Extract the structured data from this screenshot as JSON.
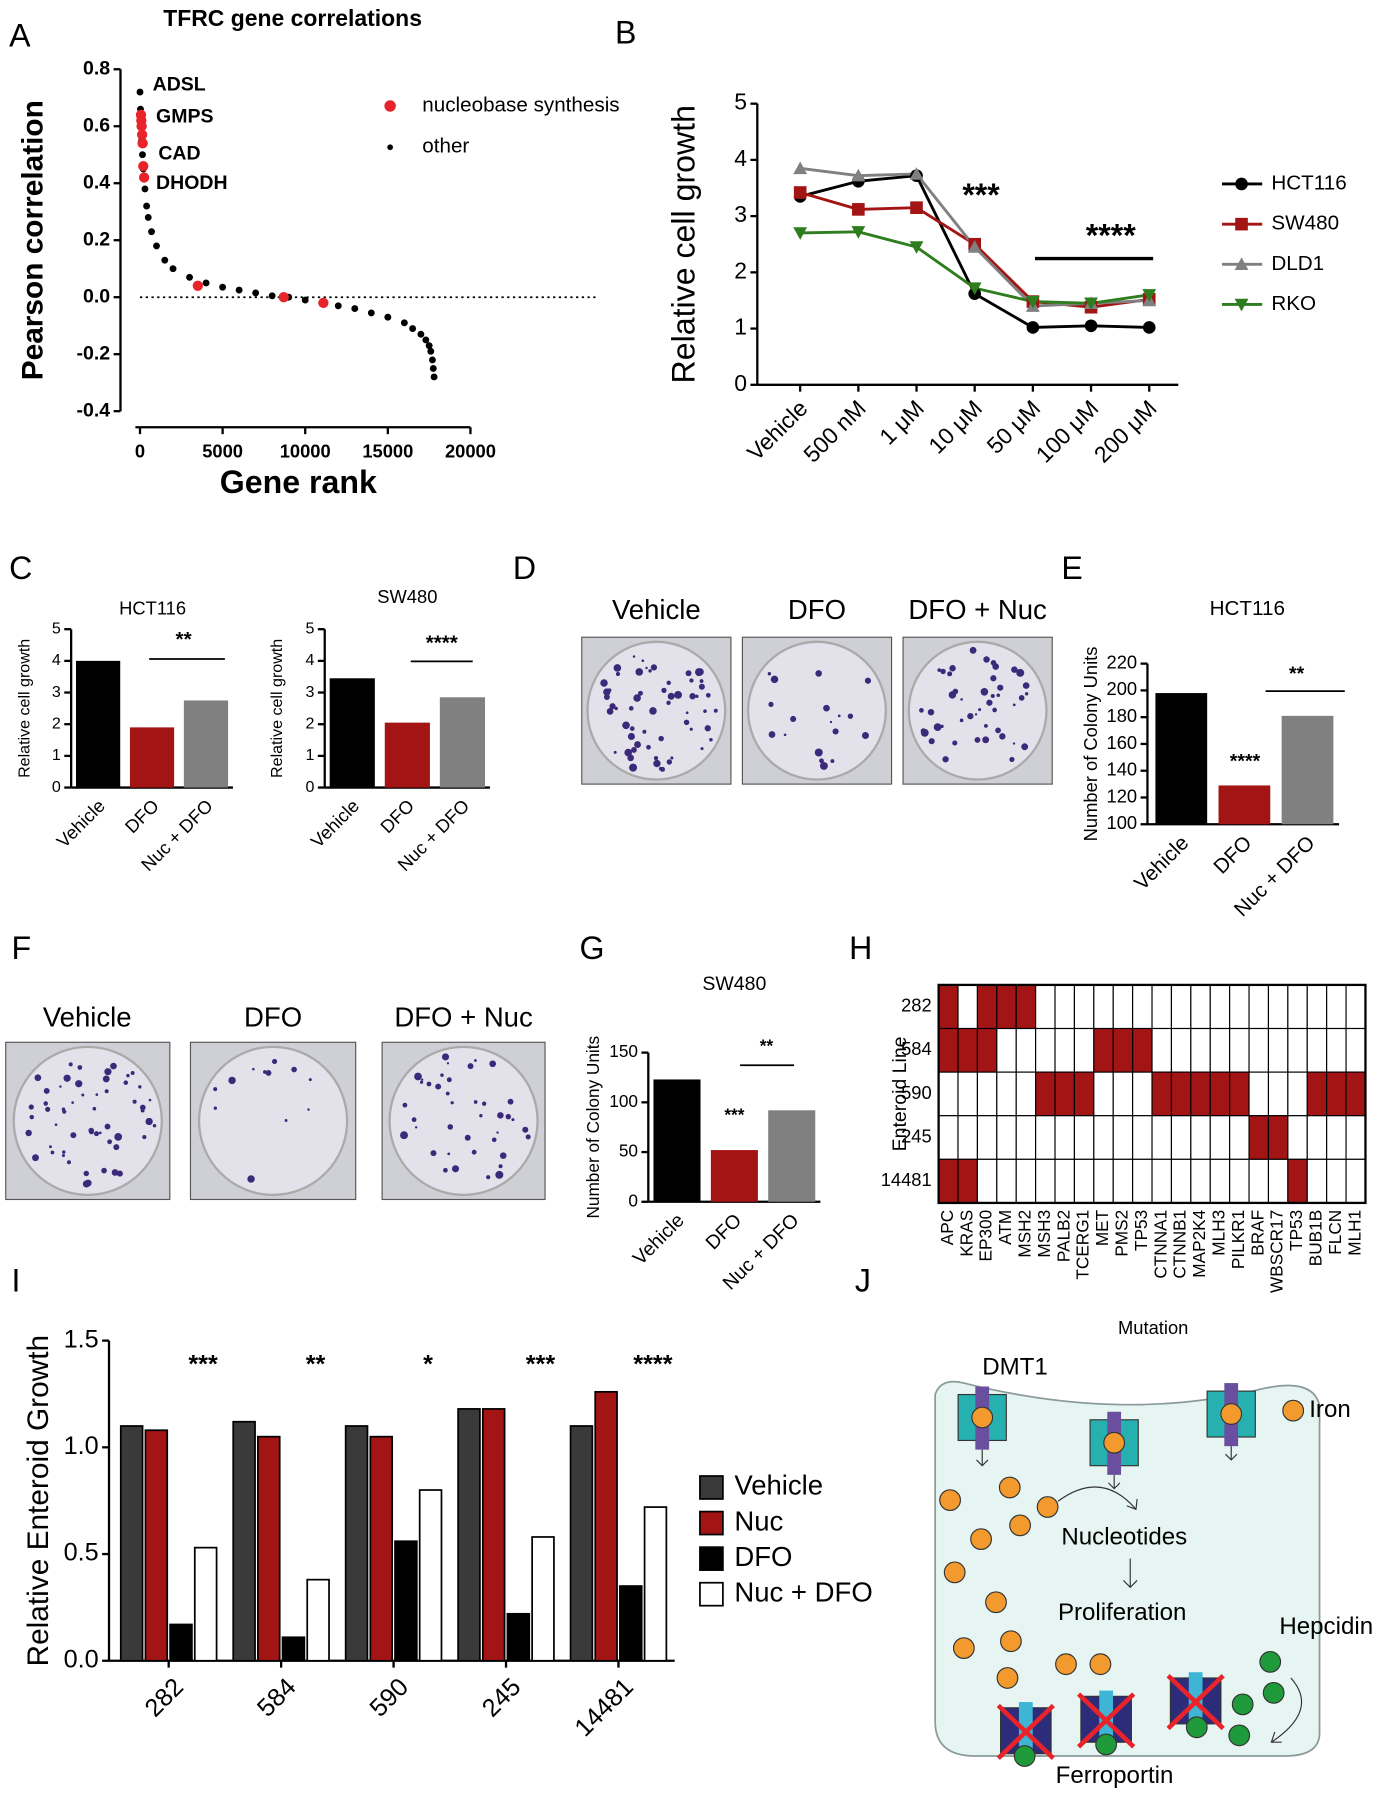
{
  "panels": [
    "A",
    "B",
    "C",
    "D",
    "E",
    "F",
    "G",
    "H",
    "I",
    "J"
  ],
  "photos": {
    "D": [
      "Vehicle",
      "DFO",
      "DFO + Nuc"
    ],
    "F": [
      "Vehicle",
      "DFO",
      "DFO + Nuc"
    ]
  },
  "diagram": {
    "dmt1": "DMT1",
    "iron": "Iron",
    "nucleotides": "Nucleotides",
    "proliferation": "Proliferation",
    "hepcidin": "Hepcidin",
    "ferroportin": "Ferroportin"
  },
  "chart_data": [
    {
      "type": "scatter",
      "title": "TFRC gene correlations",
      "x_label": "Gene rank",
      "y_label": "Pearson correlation",
      "xlim": [
        0,
        20000
      ],
      "xticks": [
        0,
        5000,
        10000,
        15000,
        20000
      ],
      "ylim": [
        -0.4,
        0.8
      ],
      "yticks": [
        -0.4,
        -0.2,
        {
          "value": 0,
          "label": "0.0"
        },
        0.2,
        0.4,
        0.6,
        0.8
      ],
      "reference_line": 0,
      "annotations": [
        "ADSL",
        "GMPS",
        "CAD",
        "DHODH"
      ],
      "series": [
        {
          "name": "other",
          "color": "#000000",
          "x": [
            0,
            30,
            60,
            100,
            150,
            200,
            300,
            400,
            500,
            700,
            1000,
            1500,
            2000,
            3000,
            4000,
            5000,
            6000,
            7000,
            8000,
            9000,
            10000,
            11000,
            12000,
            13000,
            14000,
            15000,
            16000,
            16500,
            17000,
            17300,
            17500,
            17600,
            17700,
            17750,
            17800
          ],
          "values": [
            0.72,
            0.66,
            0.6,
            0.55,
            0.5,
            0.45,
            0.38,
            0.32,
            0.28,
            0.23,
            0.18,
            0.13,
            0.1,
            0.07,
            0.05,
            0.035,
            0.025,
            0.015,
            0.005,
            0.0,
            -0.01,
            -0.02,
            -0.03,
            -0.04,
            -0.055,
            -0.07,
            -0.09,
            -0.11,
            -0.13,
            -0.15,
            -0.17,
            -0.19,
            -0.22,
            -0.25,
            -0.28
          ]
        },
        {
          "name": "nucleobase synthesis",
          "color": "#e8232a",
          "x": [
            60,
            80,
            100,
            130,
            160,
            200,
            250,
            3500,
            8700,
            11100
          ],
          "values": [
            0.64,
            0.62,
            0.6,
            0.57,
            0.54,
            0.46,
            0.42,
            0.04,
            0.0,
            -0.02
          ]
        }
      ]
    },
    {
      "type": "line",
      "y_label": "Relative cell growth",
      "categories": [
        "Vehicle",
        "500 nM",
        "1 μM",
        "10 μM",
        "50 μM",
        "100 μM",
        "200 μM"
      ],
      "ylim": [
        0,
        5
      ],
      "yticks": [
        0,
        1,
        2,
        3,
        4,
        5
      ],
      "annotations": [
        "***",
        "****"
      ],
      "series": [
        {
          "name": "HCT116",
          "color": "#000000",
          "marker": "circle",
          "values": [
            3.35,
            3.62,
            3.72,
            1.62,
            1.02,
            1.05,
            1.02
          ]
        },
        {
          "name": "SW480",
          "color": "#a31515",
          "marker": "square",
          "values": [
            3.42,
            3.12,
            3.15,
            2.5,
            1.48,
            1.38,
            1.52
          ]
        },
        {
          "name": "DLD1",
          "color": "#808080",
          "marker": "triangle-up",
          "values": [
            3.85,
            3.72,
            3.75,
            2.45,
            1.4,
            1.45,
            1.5
          ]
        },
        {
          "name": "RKO",
          "color": "#2e7d1e",
          "marker": "triangle-down",
          "values": [
            2.7,
            2.72,
            2.45,
            1.72,
            1.48,
            1.45,
            1.6
          ]
        }
      ]
    },
    {
      "type": "bar",
      "title": "HCT116",
      "y_label": "Relative cell growth",
      "categories": [
        "Vehicle",
        "DFO",
        "Nuc + DFO"
      ],
      "values": [
        4.0,
        1.9,
        2.75
      ],
      "colors": [
        "#000000",
        "#a31515",
        "#808080"
      ],
      "ylim": [
        0,
        5
      ],
      "yticks": [
        0,
        1,
        2,
        3,
        4,
        5
      ],
      "annotations": [
        "**"
      ]
    },
    {
      "type": "bar",
      "title": "SW480",
      "y_label": "Relative cell growth",
      "categories": [
        "Vehicle",
        "DFO",
        "Nuc + DFO"
      ],
      "values": [
        3.45,
        2.05,
        2.85
      ],
      "colors": [
        "#000000",
        "#a31515",
        "#808080"
      ],
      "ylim": [
        0,
        5
      ],
      "yticks": [
        0,
        1,
        2,
        3,
        4,
        5
      ],
      "annotations": [
        "****"
      ]
    },
    {
      "type": "bar",
      "title": "HCT116",
      "y_label": "Number of Colony Units",
      "categories": [
        "Vehicle",
        "DFO",
        "Nuc + DFO"
      ],
      "values": [
        198,
        129,
        181
      ],
      "colors": [
        "#000000",
        "#a31515",
        "#808080"
      ],
      "ylim": [
        100,
        220
      ],
      "yticks": [
        100,
        120,
        140,
        160,
        180,
        200,
        220
      ],
      "annotations": [
        "****",
        "**"
      ]
    },
    {
      "type": "bar",
      "title": "SW480",
      "y_label": "Number of Colony Units",
      "categories": [
        "Vehicle",
        "DFO",
        "Nuc + DFO"
      ],
      "values": [
        123,
        52,
        92
      ],
      "colors": [
        "#000000",
        "#a31515",
        "#808080"
      ],
      "ylim": [
        0,
        150
      ],
      "yticks": [
        0,
        50,
        100,
        150
      ],
      "annotations": [
        "***",
        "**"
      ]
    },
    {
      "type": "heatmap",
      "x_label": "Mutation",
      "y_label": "Enteroid Line",
      "color": "#a31515",
      "rows": [
        "282",
        "584",
        "590",
        "245",
        "14481"
      ],
      "columns": [
        "APC",
        "KRAS",
        "EP300",
        "ATM",
        "MSH2",
        "MSH3",
        "PALB2",
        "TCERG1",
        "MET",
        "PMS2",
        "TP53",
        "CTNNA1",
        "CTNNB1",
        "MAP2K4",
        "MLH3",
        "PILKR1",
        "BRAF",
        "WBSCR17",
        "TP53",
        "BUB1B",
        "FLCN",
        "MLH1"
      ],
      "values": [
        [
          1,
          0,
          1,
          1,
          1,
          0,
          0,
          0,
          0,
          0,
          0,
          0,
          0,
          0,
          0,
          0,
          0,
          0,
          0,
          0,
          0,
          0
        ],
        [
          1,
          1,
          1,
          0,
          0,
          0,
          0,
          0,
          1,
          1,
          1,
          0,
          0,
          0,
          0,
          0,
          0,
          0,
          0,
          0,
          0,
          0
        ],
        [
          0,
          0,
          0,
          0,
          0,
          1,
          1,
          1,
          0,
          0,
          0,
          1,
          1,
          1,
          1,
          1,
          0,
          0,
          0,
          1,
          1,
          1
        ],
        [
          0,
          0,
          0,
          0,
          0,
          0,
          0,
          0,
          0,
          0,
          0,
          0,
          0,
          0,
          0,
          0,
          1,
          1,
          0,
          0,
          0,
          0
        ],
        [
          1,
          1,
          0,
          0,
          0,
          0,
          0,
          0,
          0,
          0,
          0,
          0,
          0,
          0,
          0,
          0,
          0,
          0,
          1,
          0,
          0,
          0
        ]
      ]
    },
    {
      "type": "grouped-bar",
      "y_label": "Relative Enteroid Growth",
      "categories": [
        "282",
        "584",
        "590",
        "245",
        "14481"
      ],
      "ylim": [
        0,
        1.5
      ],
      "yticks": [
        {
          "value": 0,
          "label": "0.0"
        },
        0.5,
        {
          "value": 1,
          "label": "1.0"
        },
        1.5
      ],
      "annotations": [
        "***",
        "**",
        "*",
        "***",
        "****"
      ],
      "series": [
        {
          "name": "Vehicle",
          "color": "#3a3a3a",
          "values": [
            1.1,
            1.12,
            1.1,
            1.18,
            1.1
          ]
        },
        {
          "name": "Nuc",
          "color": "#a31515",
          "values": [
            1.08,
            1.05,
            1.05,
            1.18,
            1.26
          ]
        },
        {
          "name": "DFO",
          "color": "#000000",
          "values": [
            0.17,
            0.11,
            0.56,
            0.22,
            0.35
          ]
        },
        {
          "name": "Nuc + DFO",
          "color": "#ffffff",
          "values": [
            0.53,
            0.38,
            0.8,
            0.58,
            0.72
          ]
        }
      ]
    }
  ]
}
